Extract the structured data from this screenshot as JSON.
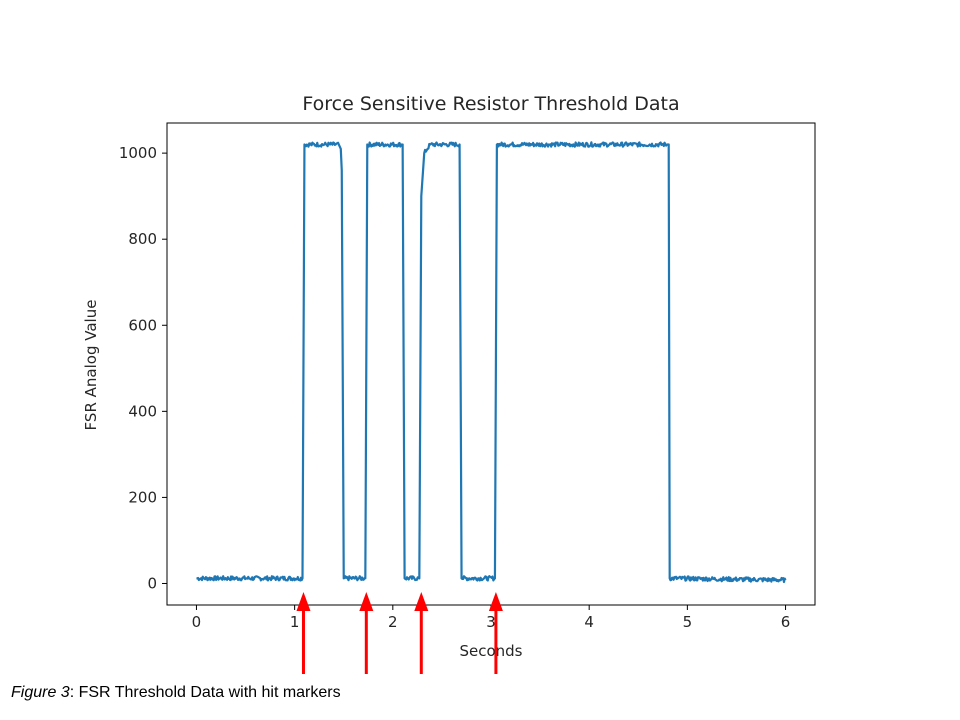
{
  "chart_data": {
    "type": "line",
    "title": "Force Sensitive Resistor Threshold Data",
    "xlabel": "Seconds",
    "ylabel": "FSR Analog Value",
    "xlim": [
      -0.3,
      6.3
    ],
    "ylim": [
      -50,
      1070
    ],
    "xticks": [
      0,
      1,
      2,
      3,
      4,
      5,
      6
    ],
    "yticks": [
      0,
      200,
      400,
      600,
      800,
      1000
    ],
    "grid": false,
    "series": [
      {
        "color": "#1f77b4",
        "x": [
          0,
          1.08,
          1.1,
          1.45,
          1.47,
          1.48,
          1.5,
          1.72,
          1.74,
          2.1,
          2.12,
          2.27,
          2.29,
          2.32,
          2.38,
          2.68,
          2.7,
          3.04,
          3.06,
          4.8,
          4.81,
          4.82,
          6.0
        ],
        "values": [
          12,
          12,
          1020,
          1020,
          1010,
          960,
          12,
          12,
          1020,
          1020,
          12,
          12,
          900,
          1000,
          1020,
          1020,
          12,
          12,
          1020,
          1020,
          1020,
          12,
          8
        ]
      }
    ],
    "hit_markers": {
      "color": "#ff0000",
      "x": [
        1.09,
        1.73,
        2.29,
        3.05
      ]
    }
  },
  "caption": {
    "label": "Figure 3",
    "text": ": FSR Threshold Data with hit markers"
  }
}
